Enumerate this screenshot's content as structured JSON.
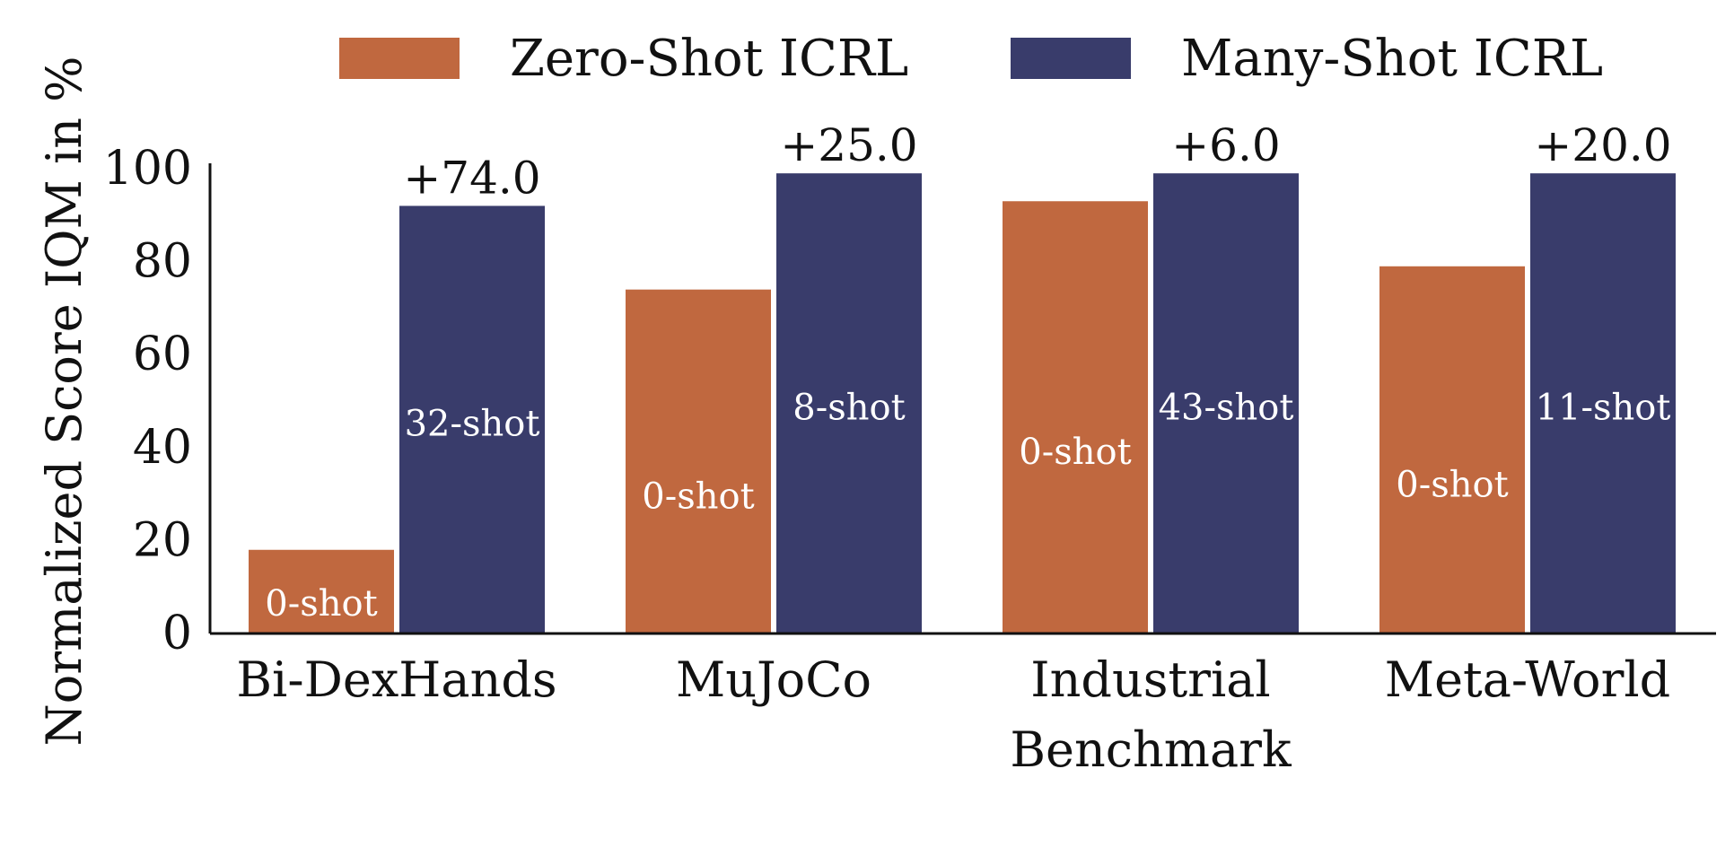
{
  "chart_data": {
    "type": "bar",
    "categories": [
      [
        "Bi-DexHands"
      ],
      [
        "MuJoCo"
      ],
      [
        "Industrial",
        "Benchmark"
      ],
      [
        "Meta-World"
      ]
    ],
    "series": [
      {
        "name": "Zero-Shot ICRL",
        "color": "#c0683f",
        "values": [
          18,
          74,
          93,
          79
        ],
        "bar_labels": [
          "0-shot",
          "0-shot",
          "0-shot",
          "0-shot"
        ]
      },
      {
        "name": "Many-Shot ICRL",
        "color": "#393c6b",
        "values": [
          92,
          99,
          99,
          99
        ],
        "bar_labels": [
          "32-shot",
          "8-shot",
          "43-shot",
          "11-shot"
        ]
      }
    ],
    "difference_labels": [
      "+74.0",
      "+25.0",
      "+6.0",
      "+20.0"
    ],
    "title": "",
    "xlabel": "",
    "ylabel": "Normalized Score IQM in %",
    "ylim": [
      0,
      100
    ],
    "yticks": [
      "0",
      "20",
      "40",
      "60",
      "80",
      "100"
    ],
    "grid": false,
    "legend": "top-center"
  }
}
